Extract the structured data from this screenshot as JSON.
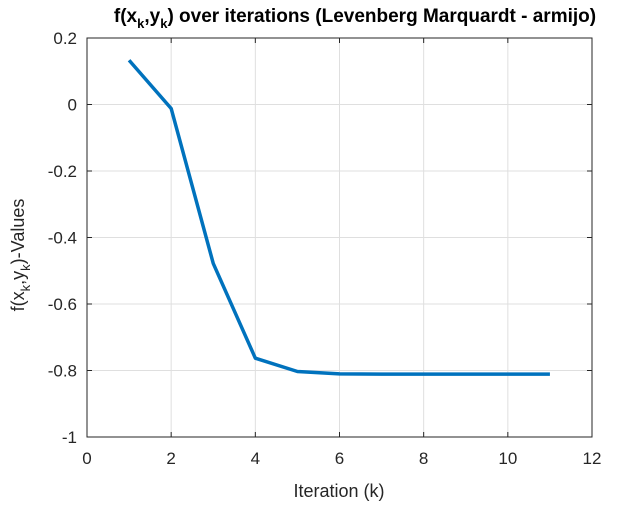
{
  "chart_data": {
    "type": "line",
    "title": {
      "prefix": "f(x",
      "sub1": "k",
      "mid": ",y",
      "sub2": "k",
      "suffix": ") over iterations (Levenberg Marquardt - armijo)"
    },
    "xlabel": "Iteration (k)",
    "ylabel": {
      "prefix": "f(x",
      "sub1": "k",
      "mid": ",y",
      "sub2": "k",
      "suffix": ")-Values"
    },
    "xlim": [
      0,
      12
    ],
    "ylim": [
      -1,
      0.2
    ],
    "xticks": [
      0,
      2,
      4,
      6,
      8,
      10,
      12
    ],
    "xtick_labels": [
      "0",
      "2",
      "4",
      "6",
      "8",
      "10",
      "12"
    ],
    "yticks": [
      -1,
      -0.8,
      -0.6,
      -0.4,
      -0.2,
      0,
      0.2
    ],
    "ytick_labels": [
      "-1",
      "-0.8",
      "-0.6",
      "-0.4",
      "-0.2",
      "0",
      "0.2"
    ],
    "grid": true,
    "series": [
      {
        "color": "#0072bd",
        "x": [
          1,
          2,
          3,
          4,
          5,
          6,
          7,
          8,
          9,
          10,
          11
        ],
        "y": [
          0.133,
          -0.012,
          -0.478,
          -0.763,
          -0.803,
          -0.81,
          -0.811,
          -0.811,
          -0.811,
          -0.811,
          -0.811
        ]
      }
    ]
  }
}
